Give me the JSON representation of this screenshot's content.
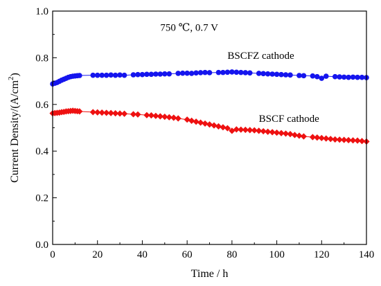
{
  "chart_data": {
    "type": "scatter",
    "xlabel": "Time / h",
    "ylabel": "Current Density/(A/cm²)",
    "xlim": [
      0,
      140
    ],
    "ylim": [
      0.0,
      1.0
    ],
    "xticks": [
      "0",
      "20",
      "40",
      "60",
      "80",
      "100",
      "120",
      "140"
    ],
    "yticks": [
      "0.0",
      "0.2",
      "0.4",
      "0.6",
      "0.8",
      "1.0"
    ],
    "grid": false,
    "annotations": [
      {
        "text": "750 ℃, 0.7 V",
        "x": 48,
        "y": 0.915
      },
      {
        "text": "BSCFZ cathode",
        "x": 78,
        "y": 0.795
      },
      {
        "text": "BSCF cathode",
        "x": 92,
        "y": 0.525
      }
    ],
    "series": [
      {
        "name": "BSCFZ cathode",
        "color": "#1515ee",
        "marker": "circle",
        "points": [
          [
            0,
            0.688
          ],
          [
            1,
            0.691
          ],
          [
            2,
            0.694
          ],
          [
            3,
            0.699
          ],
          [
            4,
            0.704
          ],
          [
            5,
            0.708
          ],
          [
            6,
            0.712
          ],
          [
            7,
            0.716
          ],
          [
            8,
            0.719
          ],
          [
            9,
            0.721
          ],
          [
            10,
            0.722
          ],
          [
            11,
            0.723
          ],
          [
            12,
            0.724
          ],
          [
            18,
            0.725
          ],
          [
            20,
            0.725
          ],
          [
            22,
            0.725
          ],
          [
            24,
            0.725
          ],
          [
            26,
            0.726
          ],
          [
            28,
            0.725
          ],
          [
            30,
            0.726
          ],
          [
            32,
            0.725
          ],
          [
            36,
            0.727
          ],
          [
            38,
            0.728
          ],
          [
            40,
            0.728
          ],
          [
            42,
            0.729
          ],
          [
            44,
            0.729
          ],
          [
            46,
            0.73
          ],
          [
            48,
            0.73
          ],
          [
            50,
            0.731
          ],
          [
            52,
            0.731
          ],
          [
            56,
            0.733
          ],
          [
            58,
            0.734
          ],
          [
            60,
            0.734
          ],
          [
            62,
            0.733
          ],
          [
            64,
            0.735
          ],
          [
            66,
            0.736
          ],
          [
            68,
            0.737
          ],
          [
            70,
            0.736
          ],
          [
            74,
            0.737
          ],
          [
            76,
            0.737
          ],
          [
            78,
            0.738
          ],
          [
            80,
            0.739
          ],
          [
            82,
            0.738
          ],
          [
            84,
            0.737
          ],
          [
            86,
            0.736
          ],
          [
            88,
            0.735
          ],
          [
            92,
            0.733
          ],
          [
            94,
            0.732
          ],
          [
            96,
            0.731
          ],
          [
            98,
            0.73
          ],
          [
            100,
            0.729
          ],
          [
            102,
            0.728
          ],
          [
            104,
            0.727
          ],
          [
            106,
            0.726
          ],
          [
            110,
            0.724
          ],
          [
            112,
            0.723
          ],
          [
            116,
            0.722
          ],
          [
            118,
            0.719
          ],
          [
            120,
            0.712
          ],
          [
            122,
            0.721
          ],
          [
            126,
            0.719
          ],
          [
            128,
            0.718
          ],
          [
            130,
            0.717
          ],
          [
            132,
            0.716
          ],
          [
            134,
            0.717
          ],
          [
            136,
            0.716
          ],
          [
            138,
            0.716
          ],
          [
            140,
            0.715
          ]
        ]
      },
      {
        "name": "BSCF cathode",
        "color": "#ee1111",
        "marker": "diamond",
        "points": [
          [
            0,
            0.562
          ],
          [
            1,
            0.563
          ],
          [
            2,
            0.564
          ],
          [
            3,
            0.565
          ],
          [
            4,
            0.567
          ],
          [
            5,
            0.568
          ],
          [
            6,
            0.57
          ],
          [
            7,
            0.571
          ],
          [
            8,
            0.572
          ],
          [
            9,
            0.573
          ],
          [
            10,
            0.572
          ],
          [
            11,
            0.571
          ],
          [
            12,
            0.57
          ],
          [
            18,
            0.567
          ],
          [
            20,
            0.566
          ],
          [
            22,
            0.565
          ],
          [
            24,
            0.564
          ],
          [
            26,
            0.563
          ],
          [
            28,
            0.562
          ],
          [
            30,
            0.561
          ],
          [
            32,
            0.56
          ],
          [
            36,
            0.558
          ],
          [
            38,
            0.557
          ],
          [
            42,
            0.554
          ],
          [
            44,
            0.553
          ],
          [
            46,
            0.551
          ],
          [
            48,
            0.549
          ],
          [
            50,
            0.547
          ],
          [
            52,
            0.545
          ],
          [
            54,
            0.543
          ],
          [
            56,
            0.54
          ],
          [
            60,
            0.535
          ],
          [
            62,
            0.53
          ],
          [
            64,
            0.526
          ],
          [
            66,
            0.522
          ],
          [
            68,
            0.518
          ],
          [
            70,
            0.514
          ],
          [
            72,
            0.51
          ],
          [
            74,
            0.506
          ],
          [
            76,
            0.502
          ],
          [
            78,
            0.498
          ],
          [
            80,
            0.487
          ],
          [
            82,
            0.493
          ],
          [
            84,
            0.492
          ],
          [
            86,
            0.491
          ],
          [
            88,
            0.49
          ],
          [
            90,
            0.489
          ],
          [
            92,
            0.487
          ],
          [
            94,
            0.485
          ],
          [
            96,
            0.483
          ],
          [
            98,
            0.481
          ],
          [
            100,
            0.479
          ],
          [
            102,
            0.477
          ],
          [
            104,
            0.475
          ],
          [
            106,
            0.473
          ],
          [
            108,
            0.469
          ],
          [
            110,
            0.466
          ],
          [
            112,
            0.463
          ],
          [
            116,
            0.46
          ],
          [
            118,
            0.458
          ],
          [
            120,
            0.456
          ],
          [
            122,
            0.454
          ],
          [
            124,
            0.452
          ],
          [
            126,
            0.45
          ],
          [
            128,
            0.449
          ],
          [
            130,
            0.448
          ],
          [
            132,
            0.447
          ],
          [
            134,
            0.446
          ],
          [
            136,
            0.445
          ],
          [
            138,
            0.443
          ],
          [
            140,
            0.441
          ]
        ]
      }
    ]
  }
}
